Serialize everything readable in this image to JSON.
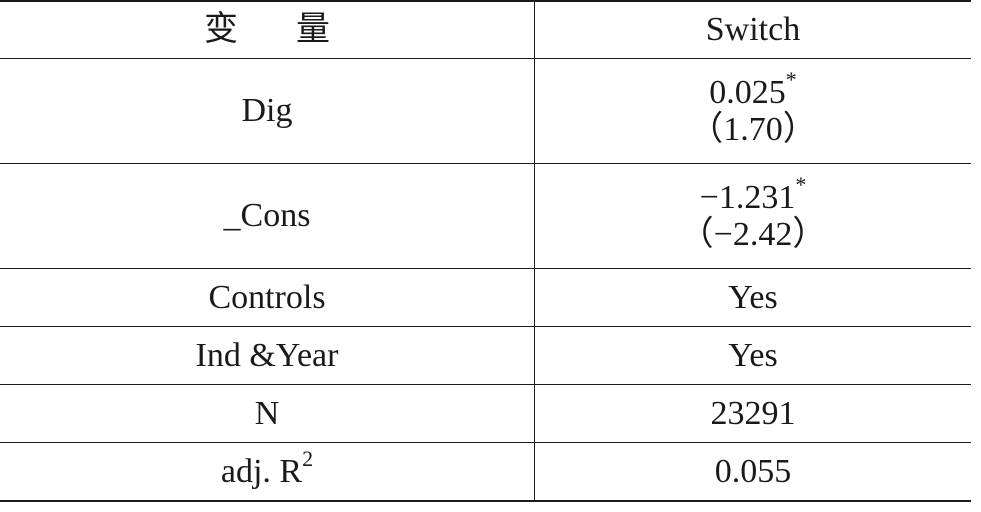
{
  "table": {
    "header": {
      "variable": "变量",
      "column": "Switch"
    },
    "rows": [
      {
        "label": "Dig",
        "coef": "0.025",
        "stars": "*",
        "tstat": "（1.70）"
      },
      {
        "label": "_Cons",
        "coef": "−1.231",
        "stars": "*",
        "tstat": "（−2.42）"
      },
      {
        "label": "Controls",
        "value": "Yes"
      },
      {
        "label": "Ind &Year",
        "value": "Yes"
      },
      {
        "label": "N",
        "value": "23291"
      },
      {
        "label_main": "adj. R",
        "label_sup": "2",
        "value": "0.055"
      }
    ]
  }
}
